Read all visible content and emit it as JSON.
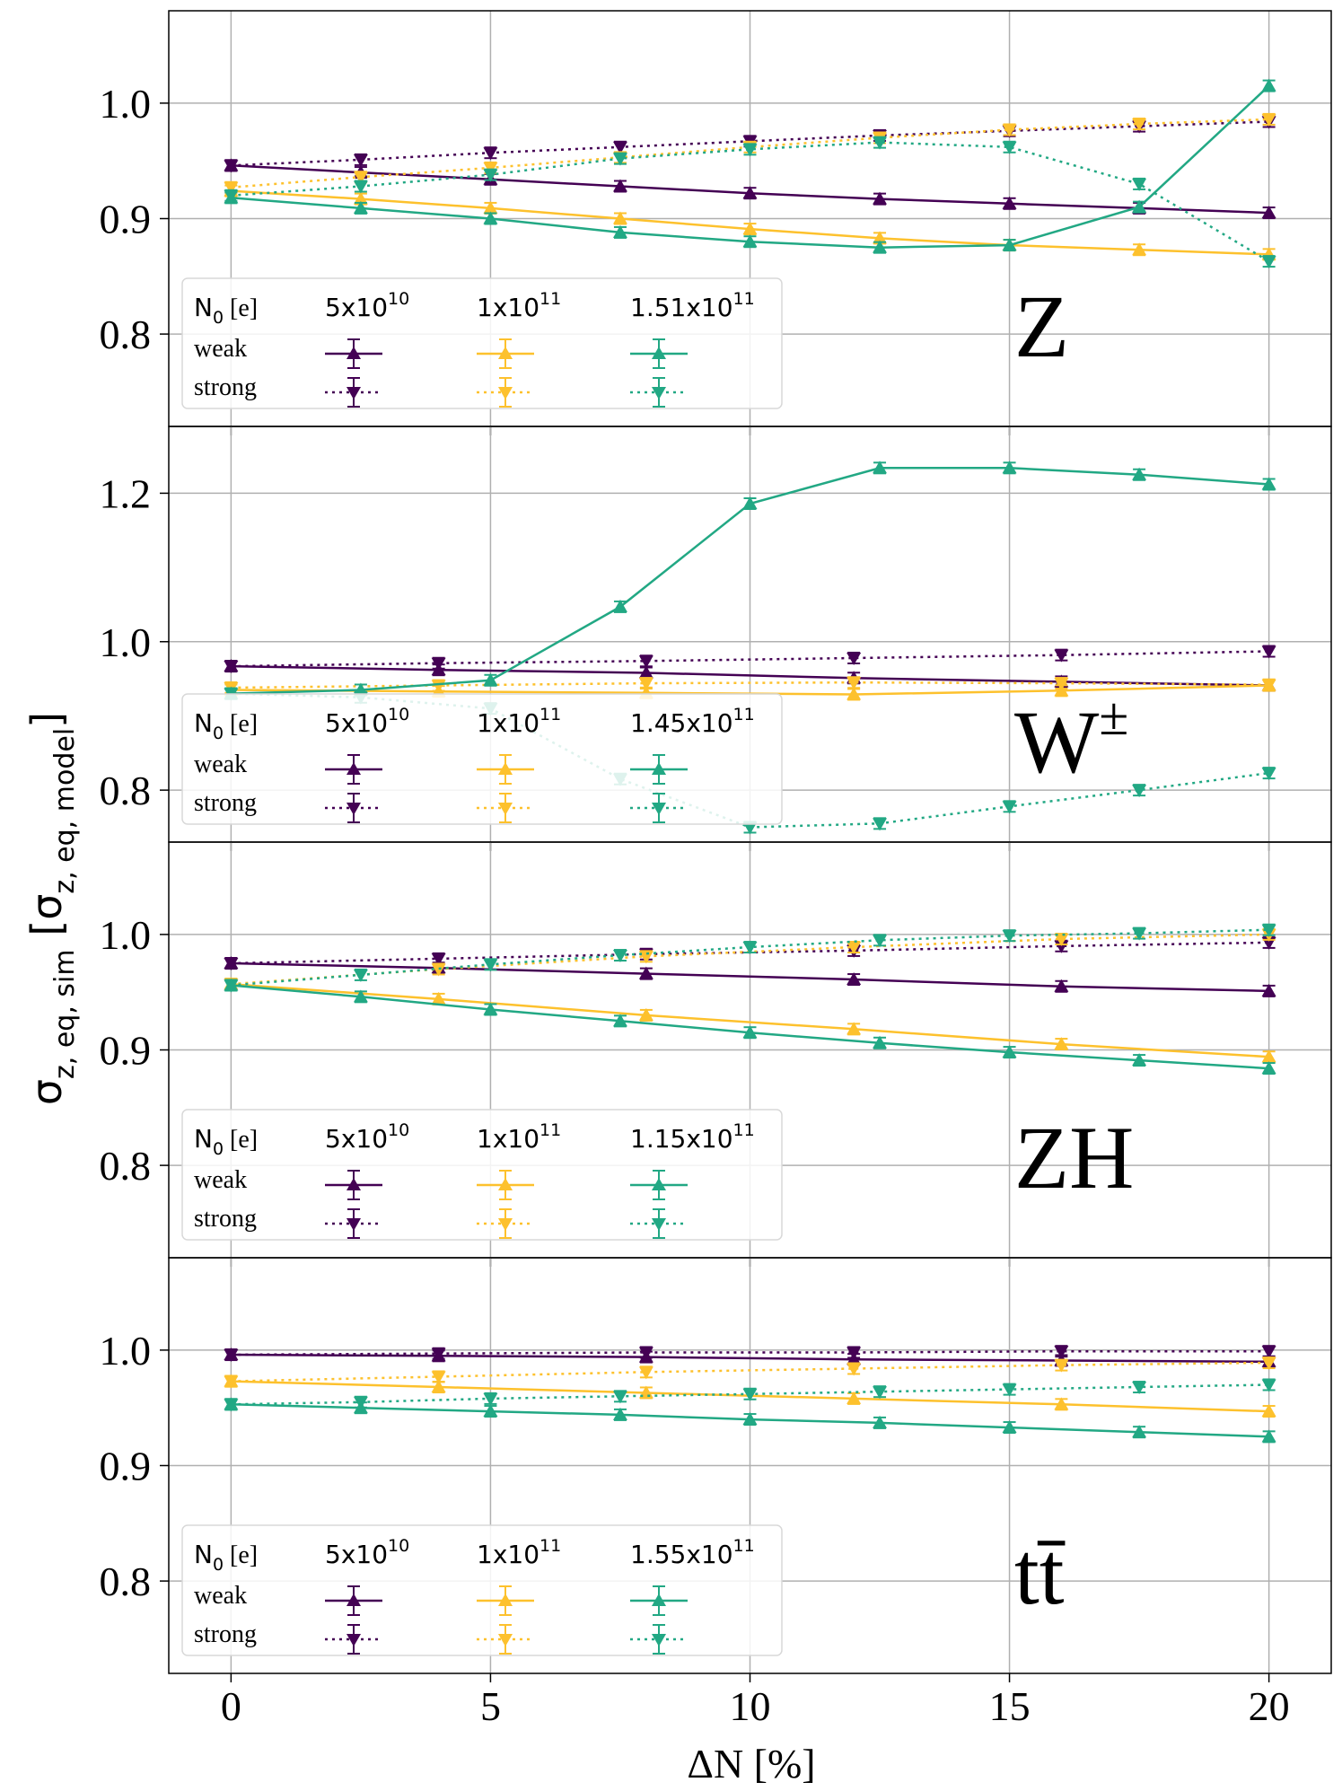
{
  "chart_data": {
    "type": "line",
    "xlabel": "ΔN [%]",
    "ylabel": "σ",
    "ylabel_sub": "z, eq, sim",
    "ylabel_mid": " [σ",
    "ylabel_sub2": "z, eq, model",
    "ylabel_end": "]",
    "x_ticks": [
      "0",
      "5",
      "10",
      "15",
      "20"
    ],
    "xlim": [
      -1.2,
      21.2
    ],
    "legend_header": "N",
    "legend_header_sub": "0",
    "legend_header_unit": " [e]",
    "legend_row_weak": "weak",
    "legend_row_strong": "strong",
    "colors": {
      "low": "#440154",
      "mid": "#fdc12d",
      "high": "#22a884"
    },
    "panels": [
      {
        "process_label": "Z",
        "ylim": [
          0.72,
          1.08
        ],
        "y_ticks": [
          "0.8",
          "0.9",
          "1.0"
        ],
        "legend_columns": [
          {
            "mantissa": "5x10",
            "exponent": "10"
          },
          {
            "mantissa": "1x10",
            "exponent": "11"
          },
          {
            "mantissa": "1.51x10",
            "exponent": "11"
          }
        ],
        "series": [
          {
            "name": "5x10^10 weak",
            "color": "low",
            "style": "weak",
            "x": [
              0,
              2.5,
              5,
              7.5,
              10,
              12.5,
              15,
              17.5,
              20
            ],
            "y": [
              0.946,
              0.94,
              0.934,
              0.928,
              0.922,
              0.917,
              0.913,
              0.909,
              0.905
            ]
          },
          {
            "name": "5x10^10 strong",
            "color": "low",
            "style": "strong",
            "x": [
              0,
              2.5,
              5,
              7.5,
              10,
              12.5,
              15,
              17.5,
              20
            ],
            "y": [
              0.946,
              0.951,
              0.957,
              0.962,
              0.967,
              0.972,
              0.976,
              0.98,
              0.984
            ]
          },
          {
            "name": "1x10^11 weak",
            "color": "mid",
            "style": "weak",
            "x": [
              0,
              2.5,
              5,
              7.5,
              10,
              12.5,
              15,
              17.5,
              20
            ],
            "y": [
              0.924,
              0.917,
              0.909,
              0.9,
              0.891,
              0.883,
              0.877,
              0.873,
              0.869
            ]
          },
          {
            "name": "1x10^11 strong",
            "color": "mid",
            "style": "strong",
            "x": [
              0,
              2.5,
              5,
              7.5,
              10,
              12.5,
              15,
              17.5,
              20
            ],
            "y": [
              0.927,
              0.936,
              0.944,
              0.953,
              0.962,
              0.97,
              0.977,
              0.982,
              0.986
            ]
          },
          {
            "name": "1.51x10^11 weak",
            "color": "high",
            "style": "weak",
            "x": [
              0,
              2.5,
              5,
              7.5,
              10,
              12.5,
              15,
              17.5,
              20
            ],
            "y": [
              0.918,
              0.909,
              0.9,
              0.888,
              0.88,
              0.875,
              0.877,
              0.91,
              1.015
            ]
          },
          {
            "name": "1.51x10^11 strong",
            "color": "high",
            "style": "strong",
            "x": [
              0,
              2.5,
              5,
              7.5,
              10,
              12.5,
              15,
              17.5,
              20
            ],
            "y": [
              0.92,
              0.928,
              0.938,
              0.952,
              0.96,
              0.966,
              0.962,
              0.93,
              0.863
            ]
          }
        ]
      },
      {
        "process_label": "W",
        "process_label_sup": "±",
        "ylim": [
          0.73,
          1.29
        ],
        "y_ticks": [
          "0.8",
          "1.0",
          "1.2"
        ],
        "legend_columns": [
          {
            "mantissa": "5x10",
            "exponent": "10"
          },
          {
            "mantissa": "1x10",
            "exponent": "11"
          },
          {
            "mantissa": "1.45x10",
            "exponent": "11"
          }
        ],
        "series": [
          {
            "name": "5x10^10 weak",
            "color": "low",
            "style": "weak",
            "x": [
              0,
              4,
              8,
              12,
              16,
              20
            ],
            "y": [
              0.967,
              0.962,
              0.958,
              0.951,
              0.946,
              0.941
            ]
          },
          {
            "name": "5x10^10 strong",
            "color": "low",
            "style": "strong",
            "x": [
              0,
              4,
              8,
              12,
              16,
              20
            ],
            "y": [
              0.967,
              0.971,
              0.974,
              0.978,
              0.982,
              0.987
            ]
          },
          {
            "name": "1x10^11 weak",
            "color": "mid",
            "style": "weak",
            "x": [
              0,
              4,
              8,
              12,
              16,
              20
            ],
            "y": [
              0.935,
              0.933,
              0.931,
              0.929,
              0.934,
              0.941
            ]
          },
          {
            "name": "1x10^11 strong",
            "color": "mid",
            "style": "strong",
            "x": [
              0,
              4,
              8,
              12,
              16,
              20
            ],
            "y": [
              0.938,
              0.941,
              0.944,
              0.945,
              0.944,
              0.942
            ]
          },
          {
            "name": "1.45x10^11 weak",
            "color": "high",
            "style": "weak",
            "x": [
              0,
              2.5,
              5,
              7.5,
              10,
              12.5,
              15,
              17.5,
              20
            ],
            "y": [
              0.93,
              0.935,
              0.948,
              1.047,
              1.186,
              1.234,
              1.234,
              1.225,
              1.212
            ]
          },
          {
            "name": "1.45x10^11 strong",
            "color": "high",
            "style": "strong",
            "x": [
              0,
              2.5,
              5,
              7.5,
              10,
              12.5,
              15,
              17.5,
              20
            ],
            "y": [
              0.93,
              0.925,
              0.91,
              0.815,
              0.75,
              0.755,
              0.778,
              0.8,
              0.823
            ]
          }
        ]
      },
      {
        "process_label": "ZH",
        "ylim": [
          0.72,
          1.08
        ],
        "y_ticks": [
          "0.8",
          "0.9",
          "1.0"
        ],
        "legend_columns": [
          {
            "mantissa": "5x10",
            "exponent": "10"
          },
          {
            "mantissa": "1x10",
            "exponent": "11"
          },
          {
            "mantissa": "1.15x10",
            "exponent": "11"
          }
        ],
        "series": [
          {
            "name": "5x10^10 weak",
            "color": "low",
            "style": "weak",
            "x": [
              0,
              4,
              8,
              12,
              16,
              20
            ],
            "y": [
              0.975,
              0.971,
              0.966,
              0.961,
              0.955,
              0.951
            ]
          },
          {
            "name": "5x10^10 strong",
            "color": "low",
            "style": "strong",
            "x": [
              0,
              4,
              8,
              12,
              16,
              20
            ],
            "y": [
              0.975,
              0.979,
              0.983,
              0.986,
              0.99,
              0.993
            ]
          },
          {
            "name": "1x10^11 weak",
            "color": "mid",
            "style": "weak",
            "x": [
              0,
              4,
              8,
              12,
              16,
              20
            ],
            "y": [
              0.957,
              0.944,
              0.93,
              0.918,
              0.905,
              0.894
            ]
          },
          {
            "name": "1x10^11 strong",
            "color": "mid",
            "style": "strong",
            "x": [
              0,
              4,
              8,
              12,
              16,
              20
            ],
            "y": [
              0.957,
              0.97,
              0.981,
              0.989,
              0.996,
              1.0
            ]
          },
          {
            "name": "1.15x10^11 weak",
            "color": "high",
            "style": "weak",
            "x": [
              0,
              2.5,
              5,
              7.5,
              10,
              12.5,
              15,
              17.5,
              20
            ],
            "y": [
              0.956,
              0.946,
              0.935,
              0.925,
              0.915,
              0.906,
              0.898,
              0.891,
              0.884
            ]
          },
          {
            "name": "1.15x10^11 strong",
            "color": "high",
            "style": "strong",
            "x": [
              0,
              2.5,
              5,
              7.5,
              10,
              12.5,
              15,
              17.5,
              20
            ],
            "y": [
              0.956,
              0.965,
              0.974,
              0.982,
              0.989,
              0.995,
              0.999,
              1.001,
              1.004
            ]
          }
        ]
      },
      {
        "process_label": "tt̄",
        "ylim": [
          0.72,
          1.08
        ],
        "y_ticks": [
          "0.8",
          "0.9",
          "1.0"
        ],
        "legend_columns": [
          {
            "mantissa": "5x10",
            "exponent": "10"
          },
          {
            "mantissa": "1x10",
            "exponent": "11"
          },
          {
            "mantissa": "1.55x10",
            "exponent": "11"
          }
        ],
        "series": [
          {
            "name": "5x10^10 weak",
            "color": "low",
            "style": "weak",
            "x": [
              0,
              4,
              8,
              12,
              16,
              20
            ],
            "y": [
              0.996,
              0.995,
              0.994,
              0.992,
              0.991,
              0.99
            ]
          },
          {
            "name": "5x10^10 strong",
            "color": "low",
            "style": "strong",
            "x": [
              0,
              4,
              8,
              12,
              16,
              20
            ],
            "y": [
              0.996,
              0.997,
              0.998,
              0.998,
              0.999,
              0.999
            ]
          },
          {
            "name": "1x10^11 weak",
            "color": "mid",
            "style": "weak",
            "x": [
              0,
              4,
              8,
              12,
              16,
              20
            ],
            "y": [
              0.973,
              0.968,
              0.963,
              0.958,
              0.953,
              0.947
            ]
          },
          {
            "name": "1x10^11 strong",
            "color": "mid",
            "style": "strong",
            "x": [
              0,
              4,
              8,
              12,
              16,
              20
            ],
            "y": [
              0.973,
              0.977,
              0.981,
              0.984,
              0.987,
              0.989
            ]
          },
          {
            "name": "1.55x10^11 weak",
            "color": "high",
            "style": "weak",
            "x": [
              0,
              2.5,
              5,
              7.5,
              10,
              12.5,
              15,
              17.5,
              20
            ],
            "y": [
              0.953,
              0.95,
              0.947,
              0.944,
              0.94,
              0.937,
              0.933,
              0.929,
              0.925
            ]
          },
          {
            "name": "1.55x10^11 strong",
            "color": "high",
            "style": "strong",
            "x": [
              0,
              2.5,
              5,
              7.5,
              10,
              12.5,
              15,
              17.5,
              20
            ],
            "y": [
              0.953,
              0.955,
              0.958,
              0.96,
              0.962,
              0.964,
              0.966,
              0.968,
              0.97
            ]
          }
        ]
      }
    ]
  }
}
